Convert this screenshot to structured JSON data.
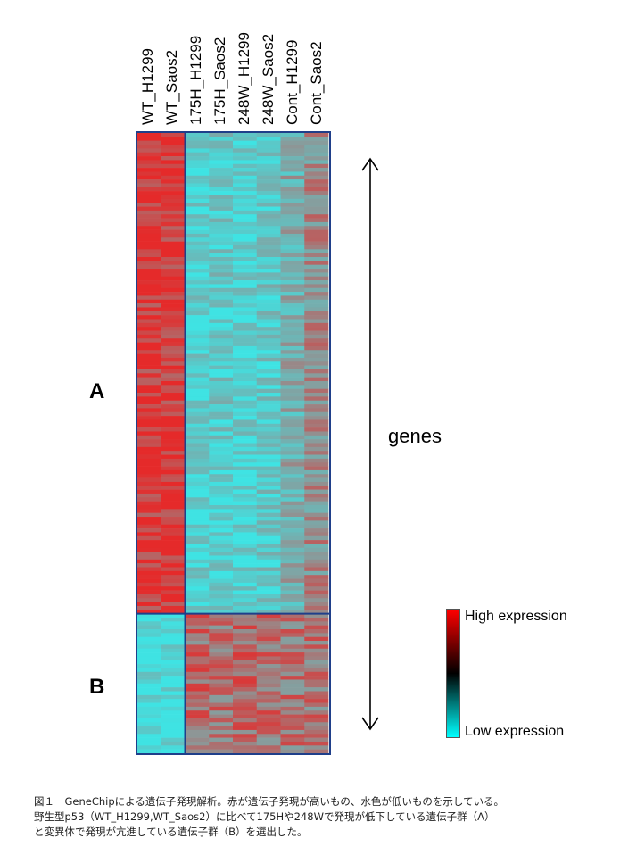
{
  "figure": {
    "columns": [
      "WT_H1299",
      "WT_Saos2",
      "175H_H1299",
      "175H_Saos2",
      "248W_H1299",
      "248W_Saos2",
      "Cont_H1299",
      "Cont_Saos2"
    ],
    "groups": [
      {
        "label": "A",
        "rows": 124,
        "profile": [
          0.9,
          0.9,
          -0.75,
          -0.65,
          -0.75,
          -0.6,
          -0.25,
          0.1
        ]
      },
      {
        "label": "B",
        "rows": 36,
        "profile": [
          -0.9,
          -0.9,
          0.45,
          0.4,
          0.45,
          0.4,
          0.35,
          0.35
        ]
      }
    ],
    "axis_label": "genes",
    "colorbar": {
      "high_label": "High expression",
      "low_label": "Low expression",
      "high_color": "#ff0000",
      "mid_color": "#000000",
      "low_color": "#00ffff"
    },
    "heatmap_colors": {
      "red": "#e52a2a",
      "cyan": "#3fe3e3",
      "gray": "#8a9a9a",
      "frame": "#1f3f8a"
    }
  },
  "caption": {
    "line1": "図１　GeneChipによる遺伝子発現解析。赤が遺伝子発現が高いもの、水色が低いものを示している。",
    "line2": "野生型p53（WT_H1299,WT_Saos2）に比べて175Hや248Wで発現が低下している遺伝子群（A）",
    "line3": "と変異体で発現が亢進している遺伝子群（B）を選出した。"
  }
}
